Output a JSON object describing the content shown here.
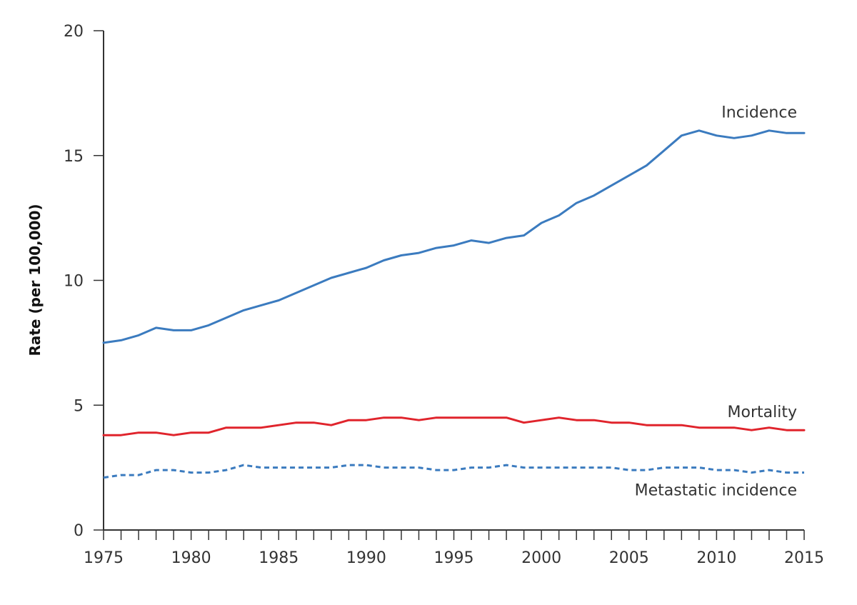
{
  "chart_data": {
    "type": "line",
    "title": "",
    "xlabel": "",
    "ylabel": "Rate (per 100,000)",
    "xlim": [
      1975,
      2015
    ],
    "ylim": [
      0,
      20
    ],
    "x_ticks": [
      1975,
      1980,
      1985,
      1990,
      1995,
      2000,
      2005,
      2010,
      2015
    ],
    "y_ticks": [
      0,
      5,
      10,
      15,
      20
    ],
    "x": [
      1975,
      1976,
      1977,
      1978,
      1979,
      1980,
      1981,
      1982,
      1983,
      1984,
      1985,
      1986,
      1987,
      1988,
      1989,
      1990,
      1991,
      1992,
      1993,
      1994,
      1995,
      1996,
      1997,
      1998,
      1999,
      2000,
      2001,
      2002,
      2003,
      2004,
      2005,
      2006,
      2007,
      2008,
      2009,
      2010,
      2011,
      2012,
      2013,
      2014,
      2015
    ],
    "series": [
      {
        "name": "Incidence",
        "color": "#3b7bbf",
        "style": "solid",
        "values": [
          7.5,
          7.6,
          7.8,
          8.1,
          8.0,
          8.0,
          8.2,
          8.5,
          8.8,
          9.0,
          9.2,
          9.5,
          9.8,
          10.1,
          10.3,
          10.5,
          10.8,
          11.0,
          11.1,
          11.3,
          11.4,
          11.6,
          11.5,
          11.7,
          11.8,
          12.3,
          12.6,
          13.1,
          13.4,
          13.8,
          14.2,
          14.6,
          15.2,
          15.8,
          16.0,
          15.8,
          15.7,
          15.8,
          16.0,
          15.9,
          15.9
        ]
      },
      {
        "name": "Mortality",
        "color": "#e0242c",
        "style": "solid",
        "values": [
          3.8,
          3.8,
          3.9,
          3.9,
          3.8,
          3.9,
          3.9,
          4.1,
          4.1,
          4.1,
          4.2,
          4.3,
          4.3,
          4.2,
          4.4,
          4.4,
          4.5,
          4.5,
          4.4,
          4.5,
          4.5,
          4.5,
          4.5,
          4.5,
          4.3,
          4.4,
          4.5,
          4.4,
          4.4,
          4.3,
          4.3,
          4.2,
          4.2,
          4.2,
          4.1,
          4.1,
          4.1,
          4.0,
          4.1,
          4.0,
          4.0
        ]
      },
      {
        "name": "Metastatic incidence",
        "color": "#3b7bbf",
        "style": "dashed",
        "values": [
          2.1,
          2.2,
          2.2,
          2.4,
          2.4,
          2.3,
          2.3,
          2.4,
          2.6,
          2.5,
          2.5,
          2.5,
          2.5,
          2.5,
          2.6,
          2.6,
          2.5,
          2.5,
          2.5,
          2.4,
          2.4,
          2.5,
          2.5,
          2.6,
          2.5,
          2.5,
          2.5,
          2.5,
          2.5,
          2.5,
          2.4,
          2.4,
          2.5,
          2.5,
          2.5,
          2.4,
          2.4,
          2.3,
          2.4,
          2.3,
          2.3
        ]
      }
    ]
  }
}
